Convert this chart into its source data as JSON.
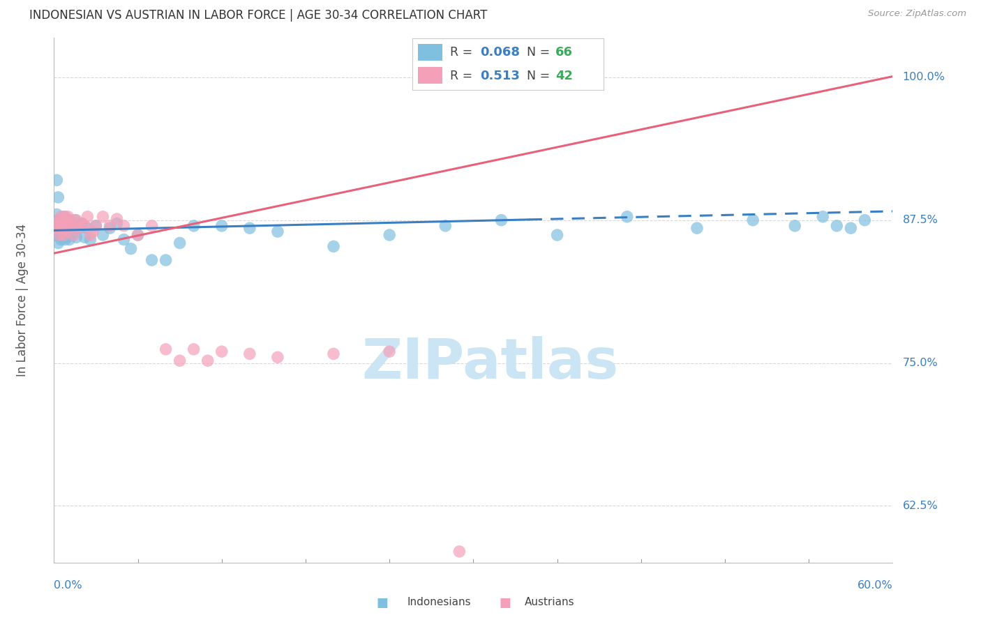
{
  "title": "INDONESIAN VS AUSTRIAN IN LABOR FORCE | AGE 30-34 CORRELATION CHART",
  "source": "Source: ZipAtlas.com",
  "ylabel": "In Labor Force | Age 30-34",
  "xmin": 0.0,
  "xmax": 0.6,
  "ymin": 0.575,
  "ymax": 1.035,
  "blue_color": "#7fbfdf",
  "pink_color": "#f4a0b8",
  "blue_line_color": "#3a7fc1",
  "pink_line_color": "#e8607a",
  "watermark_color": "#cce5f5",
  "background_color": "#ffffff",
  "grid_color": "#d8d8d8",
  "indonesian_x": [
    0.001,
    0.002,
    0.002,
    0.003,
    0.003,
    0.003,
    0.003,
    0.004,
    0.004,
    0.004,
    0.005,
    0.005,
    0.005,
    0.005,
    0.005,
    0.006,
    0.006,
    0.006,
    0.007,
    0.007,
    0.007,
    0.008,
    0.008,
    0.008,
    0.009,
    0.009,
    0.01,
    0.01,
    0.011,
    0.012,
    0.013,
    0.014,
    0.015,
    0.016,
    0.018,
    0.02,
    0.022,
    0.024,
    0.026,
    0.03,
    0.035,
    0.04,
    0.045,
    0.05,
    0.055,
    0.06,
    0.07,
    0.08,
    0.09,
    0.1,
    0.12,
    0.14,
    0.16,
    0.2,
    0.24,
    0.28,
    0.32,
    0.36,
    0.41,
    0.46,
    0.5,
    0.53,
    0.55,
    0.56,
    0.57,
    0.58
  ],
  "indonesian_y": [
    0.862,
    0.88,
    0.91,
    0.875,
    0.87,
    0.855,
    0.895,
    0.875,
    0.87,
    0.862,
    0.868,
    0.875,
    0.865,
    0.858,
    0.87,
    0.86,
    0.875,
    0.87,
    0.868,
    0.878,
    0.865,
    0.87,
    0.862,
    0.858,
    0.872,
    0.86,
    0.868,
    0.875,
    0.858,
    0.87,
    0.862,
    0.87,
    0.875,
    0.86,
    0.868,
    0.872,
    0.86,
    0.868,
    0.858,
    0.87,
    0.862,
    0.868,
    0.872,
    0.858,
    0.85,
    0.862,
    0.84,
    0.84,
    0.855,
    0.87,
    0.87,
    0.868,
    0.865,
    0.852,
    0.862,
    0.87,
    0.875,
    0.862,
    0.878,
    0.868,
    0.875,
    0.87,
    0.878,
    0.87,
    0.868,
    0.875
  ],
  "austrian_x": [
    0.001,
    0.002,
    0.003,
    0.004,
    0.004,
    0.005,
    0.005,
    0.006,
    0.006,
    0.007,
    0.008,
    0.008,
    0.009,
    0.01,
    0.011,
    0.012,
    0.014,
    0.015,
    0.016,
    0.018,
    0.02,
    0.022,
    0.024,
    0.026,
    0.028,
    0.03,
    0.035,
    0.04,
    0.045,
    0.05,
    0.06,
    0.07,
    0.08,
    0.09,
    0.1,
    0.11,
    0.12,
    0.14,
    0.16,
    0.2,
    0.24,
    0.29
  ],
  "austrian_y": [
    0.87,
    0.872,
    0.868,
    0.875,
    0.862,
    0.878,
    0.87,
    0.868,
    0.875,
    0.862,
    0.87,
    0.878,
    0.865,
    0.878,
    0.87,
    0.875,
    0.862,
    0.87,
    0.875,
    0.868,
    0.872,
    0.87,
    0.878,
    0.862,
    0.865,
    0.87,
    0.878,
    0.87,
    0.876,
    0.87,
    0.862,
    0.87,
    0.762,
    0.752,
    0.762,
    0.752,
    0.76,
    0.758,
    0.755,
    0.758,
    0.76,
    0.585
  ],
  "right_tick_labels": {
    "0.625": "62.5%",
    "0.750": "75.0%",
    "0.875": "87.5%",
    "1.000": "100.0%"
  },
  "right_tick_color": "#3a7fc1",
  "axis_label_color": "#3a7fc1",
  "legend_blue_r": "0.068",
  "legend_blue_n": "66",
  "legend_pink_r": "0.513",
  "legend_pink_n": "42",
  "r_color": "#3a7fc1",
  "n_color": "#3aaa5c"
}
